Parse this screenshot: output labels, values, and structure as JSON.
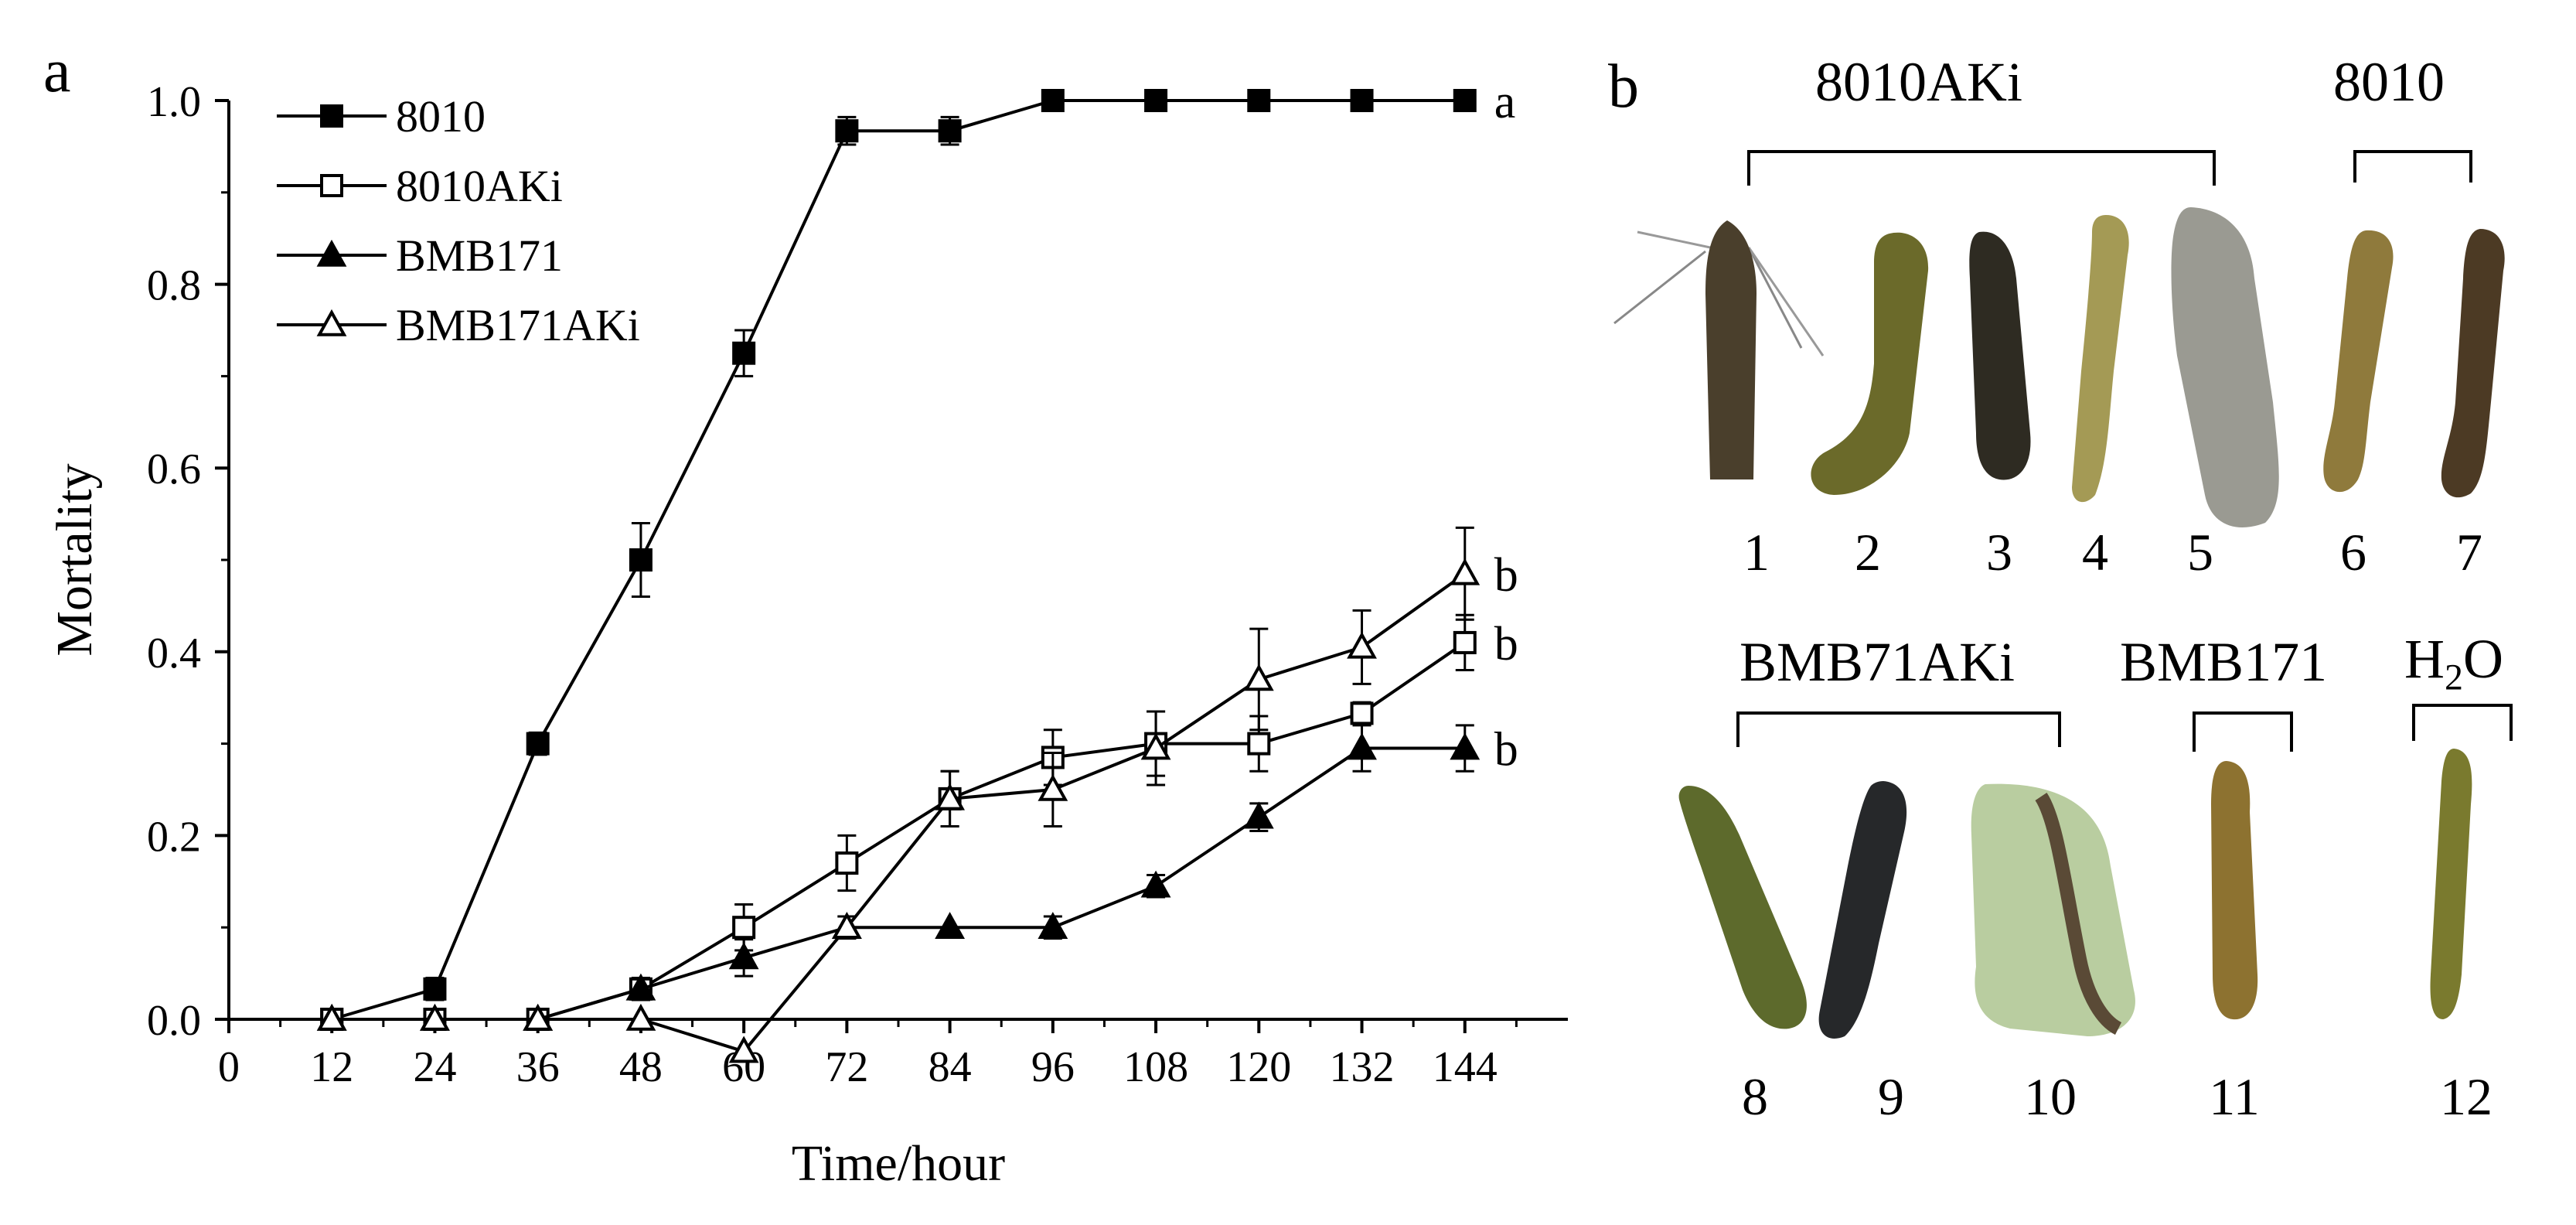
{
  "panel_a_label": "a",
  "panel_b_label": "b",
  "chart_data": {
    "type": "line",
    "xlabel": "Time/hour",
    "ylabel": "Mortality",
    "xlim": [
      0,
      156
    ],
    "ylim": [
      0,
      1.0
    ],
    "x_ticks": [
      "0",
      "12",
      "24",
      "36",
      "48",
      "60",
      "72",
      "84",
      "96",
      "108",
      "120",
      "132",
      "144"
    ],
    "y_ticks": [
      "0.0",
      "0.2",
      "0.4",
      "0.6",
      "0.8",
      "1.0"
    ],
    "legend_position": "top-left",
    "x": [
      12,
      24,
      36,
      48,
      60,
      72,
      84,
      96,
      108,
      120,
      132,
      144
    ],
    "series": [
      {
        "name": "8010",
        "marker": "filled-square",
        "values": [
          0,
          0.033,
          0.3,
          0.5,
          0.725,
          0.967,
          0.967,
          1.0,
          1.0,
          1.0,
          1.0,
          1.0
        ],
        "errors": [
          0,
          0.012,
          0.012,
          0.04,
          0.025,
          0.015,
          0.015,
          0,
          0,
          0,
          0,
          0
        ],
        "significance": "a"
      },
      {
        "name": "8010AKi",
        "marker": "open-square",
        "values": [
          0,
          0,
          0,
          0.033,
          0.1,
          0.17,
          0.24,
          0.285,
          0.3,
          0.3,
          0.333,
          0.41
        ],
        "errors": [
          0,
          0,
          0,
          0.012,
          0.025,
          0.03,
          0.03,
          0.03,
          0.035,
          0.03,
          0.012,
          0.03
        ],
        "significance": "b"
      },
      {
        "name": "BMB171",
        "marker": "filled-triangle",
        "values": [
          0,
          0,
          0,
          0.033,
          0.067,
          0.1,
          0.1,
          0.1,
          0.145,
          0.22,
          0.295,
          0.295
        ],
        "errors": [
          0,
          0,
          0,
          0.012,
          0.02,
          0.012,
          0,
          0.012,
          0.012,
          0.015,
          0.025,
          0.025
        ],
        "significance": "b"
      },
      {
        "name": "BMB171AKi",
        "marker": "open-triangle",
        "values": [
          0,
          0,
          0,
          0,
          -0.035,
          0.1,
          0.24,
          0.25,
          0.295,
          0.37,
          0.405,
          0.485
        ],
        "errors": [
          0,
          0,
          0,
          0,
          0,
          0.012,
          0.03,
          0.04,
          0.04,
          0.055,
          0.04,
          0.05
        ],
        "significance": "b"
      }
    ]
  },
  "photo_panel": {
    "groups": [
      {
        "label": "8010AKi",
        "ids": [
          "1",
          "2",
          "3",
          "4",
          "5"
        ]
      },
      {
        "label": "8010",
        "ids": [
          "6",
          "7"
        ]
      },
      {
        "label": "BMB71AKi",
        "ids": [
          "8",
          "9",
          "10"
        ]
      },
      {
        "label": "BMB171",
        "ids": [
          "11"
        ]
      },
      {
        "label_main": "H",
        "label_sub": "2",
        "label_tail": "O",
        "ids": [
          "12"
        ]
      }
    ],
    "specimen_colors": {
      "moth": "#4a3f2c",
      "olive": "#6b6a2a",
      "dark": "#2e2b22",
      "pale": "#a49a55",
      "mold": "#9a9a92",
      "tan": "#8f7a3c",
      "brown": "#4c3a24",
      "green": "#5d6a2c",
      "black": "#26282a",
      "pale-green": "#b9cda0",
      "amber": "#8d7230",
      "yellow-green": "#7a7a2e"
    }
  }
}
